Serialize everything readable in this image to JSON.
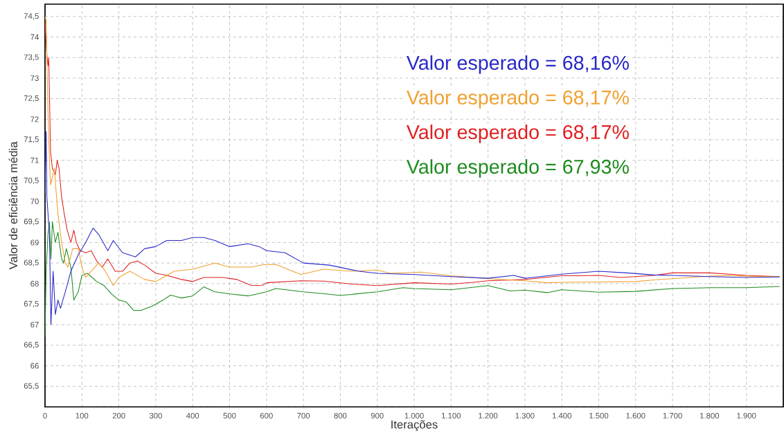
{
  "chart_data": {
    "type": "line",
    "xlabel": "Iterações",
    "ylabel": "Valor de eficiência média",
    "xlim": [
      0,
      2000
    ],
    "ylim": [
      65,
      74.8
    ],
    "xticks": [
      0,
      100,
      200,
      300,
      400,
      500,
      600,
      700,
      800,
      900,
      {
        "value": 1000,
        "label": "1.000"
      },
      {
        "value": 1100,
        "label": "1.100"
      },
      {
        "value": 1200,
        "label": "1.200"
      },
      {
        "value": 1300,
        "label": "1.300"
      },
      {
        "value": 1400,
        "label": "1.400"
      },
      {
        "value": 1500,
        "label": "1.500"
      },
      {
        "value": 1600,
        "label": "1.600"
      },
      {
        "value": 1700,
        "label": "1.700"
      },
      {
        "value": 1800,
        "label": "1.800"
      },
      {
        "value": 1900,
        "label": "1.900"
      }
    ],
    "yticks": [
      {
        "value": 65.5,
        "label": "65,5"
      },
      66,
      {
        "value": 66.5,
        "label": "66,5"
      },
      67,
      {
        "value": 67.5,
        "label": "67,5"
      },
      68,
      {
        "value": 68.5,
        "label": "68,5"
      },
      69,
      {
        "value": 69.5,
        "label": "69,5"
      },
      70,
      {
        "value": 70.5,
        "label": "70,5"
      },
      71,
      {
        "value": 71.5,
        "label": "71,5"
      },
      72,
      {
        "value": 72.5,
        "label": "72,5"
      },
      73,
      {
        "value": 73.5,
        "label": "73,5"
      },
      74,
      {
        "value": 74.5,
        "label": "74,5"
      }
    ],
    "grid": true,
    "annotations": [
      "Valor esperado =  68,16%",
      "Valor esperado =  68,17%",
      "Valor esperado =  68,17%",
      "Valor esperado =  67,93%"
    ],
    "series": [
      {
        "color": "#2828c8",
        "x": [
          0,
          3,
          5,
          12,
          16,
          22,
          28,
          35,
          42,
          55,
          70,
          90,
          110,
          130,
          145,
          170,
          185,
          210,
          245,
          270,
          300,
          330,
          370,
          400,
          430,
          460,
          500,
          550,
          580,
          600,
          650,
          700,
          770,
          850,
          900,
          1000,
          1100,
          1200,
          1270,
          1300,
          1400,
          1500,
          1575,
          1650,
          1700,
          1800,
          1900,
          1990
        ],
        "values": [
          70.2,
          71.7,
          70.1,
          69.2,
          67.0,
          68.3,
          67.25,
          67.6,
          67.4,
          67.8,
          68.3,
          68.7,
          69.0,
          69.35,
          69.2,
          68.8,
          69.05,
          68.75,
          68.65,
          68.85,
          68.9,
          69.05,
          69.05,
          69.12,
          69.12,
          69.05,
          68.9,
          68.97,
          68.9,
          68.8,
          68.75,
          68.5,
          68.45,
          68.3,
          68.25,
          68.22,
          68.17,
          68.13,
          68.2,
          68.13,
          68.23,
          68.3,
          68.26,
          68.21,
          68.2,
          68.17,
          68.15,
          68.16
        ]
      },
      {
        "color": "#f0a030",
        "x": [
          0,
          3,
          8,
          12,
          15,
          25,
          35,
          45,
          55,
          62,
          75,
          90,
          100,
          110,
          125,
          145,
          160,
          185,
          200,
          230,
          270,
          300,
          320,
          350,
          400,
          460,
          500,
          560,
          590,
          625,
          693,
          755,
          830,
          900,
          935,
          1020,
          1100,
          1200,
          1300,
          1360,
          1400,
          1500,
          1600,
          1650,
          1700,
          1800,
          1855,
          1900,
          1990
        ],
        "values": [
          74.5,
          74.4,
          72.2,
          71.0,
          70.4,
          70.8,
          69.7,
          69.0,
          68.5,
          68.4,
          68.85,
          68.85,
          68.4,
          68.15,
          68.3,
          68.5,
          68.35,
          67.95,
          68.15,
          68.3,
          68.1,
          68.05,
          68.15,
          68.3,
          68.35,
          68.5,
          68.4,
          68.4,
          68.46,
          68.47,
          68.22,
          68.35,
          68.3,
          68.33,
          68.25,
          68.28,
          68.19,
          68.12,
          68.07,
          68.02,
          68.03,
          68.04,
          68.05,
          68.09,
          68.12,
          68.18,
          68.2,
          68.18,
          68.17
        ]
      },
      {
        "color": "#e02020",
        "x": [
          0,
          5,
          8,
          10,
          15,
          20,
          28,
          33,
          38,
          45,
          52,
          60,
          70,
          78,
          85,
          95,
          110,
          125,
          140,
          155,
          170,
          190,
          210,
          230,
          250,
          270,
          300,
          330,
          370,
          400,
          430,
          480,
          520,
          560,
          590,
          600,
          693,
          755,
          830,
          900,
          1000,
          1100,
          1160,
          1200,
          1300,
          1400,
          1450,
          1500,
          1560,
          1650,
          1700,
          1800,
          1855,
          1900,
          1990
        ],
        "values": [
          74.4,
          73.56,
          73.3,
          73.5,
          71.2,
          70.8,
          70.65,
          71.0,
          70.8,
          70.1,
          69.7,
          69.3,
          69.0,
          69.3,
          69.0,
          68.8,
          68.75,
          68.8,
          68.55,
          68.4,
          68.6,
          68.3,
          68.3,
          68.5,
          68.55,
          68.45,
          68.25,
          68.2,
          68.1,
          68.05,
          68.15,
          68.15,
          68.1,
          67.95,
          67.96,
          68.02,
          68.07,
          68.06,
          67.99,
          67.95,
          68.02,
          67.99,
          68.03,
          68.07,
          68.1,
          68.19,
          68.19,
          68.2,
          68.15,
          68.2,
          68.26,
          68.26,
          68.23,
          68.2,
          68.17
        ]
      },
      {
        "color": "#1e8c1e",
        "x": [
          0,
          3,
          8,
          12,
          16,
          20,
          28,
          35,
          45,
          50,
          58,
          70,
          78,
          90,
          100,
          115,
          140,
          160,
          180,
          200,
          220,
          240,
          260,
          290,
          320,
          340,
          370,
          400,
          430,
          460,
          500,
          550,
          600,
          625,
          700,
          760,
          800,
          900,
          970,
          1000,
          1100,
          1200,
          1260,
          1300,
          1360,
          1400,
          1500,
          1600,
          1700,
          1800,
          1900,
          1990
        ],
        "values": [
          66.7,
          68.3,
          69.2,
          69.5,
          68.6,
          69.5,
          69.0,
          69.25,
          68.6,
          68.5,
          68.85,
          68.4,
          67.6,
          67.8,
          68.2,
          68.25,
          68.05,
          67.95,
          67.75,
          67.6,
          67.55,
          67.35,
          67.35,
          67.45,
          67.6,
          67.72,
          67.65,
          67.7,
          67.92,
          67.8,
          67.75,
          67.7,
          67.8,
          67.88,
          67.8,
          67.75,
          67.71,
          67.8,
          67.9,
          67.88,
          67.85,
          67.95,
          67.82,
          67.84,
          67.78,
          67.85,
          67.79,
          67.81,
          67.88,
          67.9,
          67.9,
          67.93
        ]
      }
    ]
  }
}
